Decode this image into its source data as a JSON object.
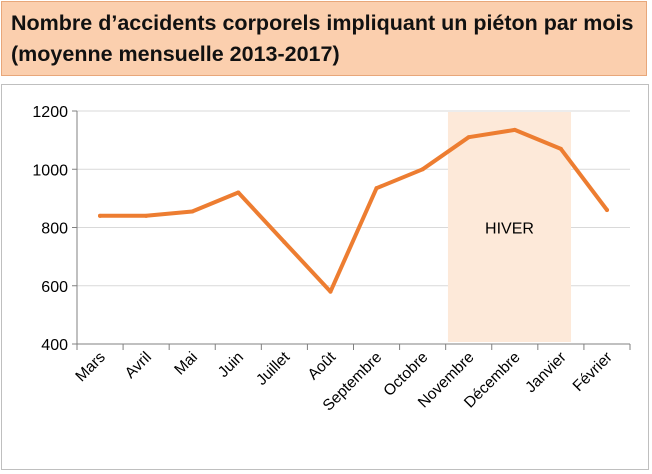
{
  "header": {
    "title": "Nombre d’accidents corporels impliquant un piéton par mois (moyenne mensuelle 2013-2017)"
  },
  "colors": {
    "header_bg": "#fbcfae",
    "line": "#ed7d31",
    "highlight": "#fde9d9",
    "grid": "#d9d9d9"
  },
  "chart_data": {
    "type": "line",
    "title": "",
    "xlabel": "",
    "ylabel": "",
    "categories": [
      "Mars",
      "Avril",
      "Mai",
      "Juin",
      "Juillet",
      "Août",
      "Septembre",
      "Octobre",
      "Novembre",
      "Décembre",
      "Janvier",
      "Février"
    ],
    "series": [
      {
        "values": [
          840,
          840,
          855,
          920,
          750,
          580,
          935,
          1000,
          1110,
          1135,
          1070,
          860
        ]
      }
    ],
    "ylim": [
      400,
      1200
    ],
    "yticks": [
      400,
      600,
      800,
      1000,
      1200
    ],
    "grid": true,
    "legend": "none",
    "highlight_region": {
      "from": "Novembre",
      "to": "Janvier",
      "label": "HIVER"
    }
  }
}
